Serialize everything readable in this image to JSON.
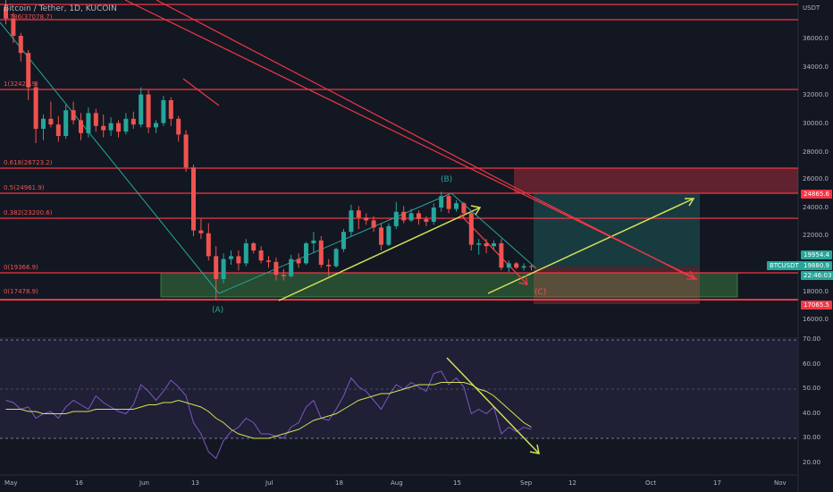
{
  "header": {
    "symbol_title": "Bitcoin / Tether, 1D, KUCOIN"
  },
  "currency": "USDT",
  "y_ticks": [
    "36000.0",
    "34000.0",
    "32000.0",
    "30000.0",
    "28000.0",
    "26000.0",
    "24000.0",
    "22000.0",
    "18000.0",
    "16000.0"
  ],
  "rsi_ticks": [
    "70.00",
    "60.00",
    "50.00",
    "40.00",
    "30.00",
    "20.00"
  ],
  "x_ticks": [
    "May",
    "16",
    "Jun",
    "13",
    "Jul",
    "18",
    "Aug",
    "15",
    "Sep",
    "12",
    "Oct",
    "17",
    "Nov"
  ],
  "fib_labels": {
    "top": "0.786(37078.7)",
    "l1": "1(32424.9)",
    "l0618": "0.618(26723.2)",
    "l05": "0.5(24961.9)",
    "l0382": "0.382(23200.6)",
    "l0": "0(19366.9)",
    "lbottom": "0(17478.9)"
  },
  "badges": {
    "b24865": "24865.6",
    "b19954": "19954.4",
    "btcusdt": "BTCUSDT",
    "price": "19880.9",
    "countdown": "22:46:03",
    "b17065": "17065.5"
  },
  "waves": {
    "A": "(A)",
    "B": "(B)",
    "C": "(C)"
  },
  "colors": {
    "bg": "#131722",
    "up": "#26a69a",
    "down": "#ef5350",
    "fib": "#f23645",
    "rsi": "#7e57c2",
    "ma": "#d4e157"
  },
  "chart_data": {
    "type": "candlestick",
    "candles": [
      [
        38000,
        38500,
        36800,
        37200
      ],
      [
        37200,
        37600,
        35500,
        36000
      ],
      [
        36000,
        36200,
        34200,
        34800
      ],
      [
        34800,
        35000,
        31500,
        32400
      ],
      [
        32400,
        32800,
        28500,
        29500
      ],
      [
        29500,
        30500,
        28700,
        30200
      ],
      [
        30200,
        31400,
        29600,
        29800
      ],
      [
        29800,
        30400,
        28600,
        29000
      ],
      [
        29000,
        31200,
        28800,
        30800
      ],
      [
        30800,
        31400,
        29800,
        30100
      ],
      [
        30100,
        30600,
        28700,
        29200
      ],
      [
        29200,
        31000,
        28900,
        30600
      ],
      [
        30600,
        30900,
        29300,
        29700
      ],
      [
        29700,
        30500,
        28900,
        29400
      ],
      [
        29400,
        30300,
        29000,
        29900
      ],
      [
        29900,
        30100,
        28900,
        29300
      ],
      [
        29300,
        30600,
        29100,
        30200
      ],
      [
        30200,
        30700,
        29500,
        29800
      ],
      [
        29800,
        32400,
        29600,
        31900
      ],
      [
        31900,
        32200,
        29200,
        29600
      ],
      [
        29600,
        30100,
        29200,
        29900
      ],
      [
        29900,
        31800,
        29700,
        31500
      ],
      [
        31500,
        31700,
        29700,
        30200
      ],
      [
        30200,
        30400,
        28600,
        29100
      ],
      [
        29100,
        29400,
        26500,
        26800
      ],
      [
        26800,
        27000,
        22000,
        22400
      ],
      [
        22400,
        23200,
        21800,
        22200
      ],
      [
        22200,
        22900,
        20300,
        20600
      ],
      [
        20600,
        21300,
        17600,
        19000
      ],
      [
        19000,
        20800,
        18700,
        20400
      ],
      [
        20400,
        21000,
        20000,
        20600
      ],
      [
        20600,
        21000,
        19600,
        20100
      ],
      [
        20100,
        21800,
        19900,
        21500
      ],
      [
        21500,
        21600,
        20800,
        21000
      ],
      [
        21000,
        21300,
        20100,
        20300
      ],
      [
        20300,
        20600,
        19800,
        20200
      ],
      [
        20200,
        20500,
        18900,
        19300
      ],
      [
        19300,
        19700,
        18900,
        19200
      ],
      [
        19200,
        20700,
        19100,
        20400
      ],
      [
        20400,
        20800,
        19800,
        20100
      ],
      [
        20100,
        21600,
        20000,
        21500
      ],
      [
        21500,
        22300,
        20800,
        21700
      ],
      [
        21700,
        22000,
        19800,
        20000
      ],
      [
        20000,
        20400,
        19200,
        19900
      ],
      [
        19900,
        21200,
        19800,
        21100
      ],
      [
        21100,
        22500,
        20900,
        22300
      ],
      [
        22300,
        24200,
        22000,
        23800
      ],
      [
        23800,
        24100,
        22500,
        23300
      ],
      [
        23300,
        23600,
        22800,
        23100
      ],
      [
        23100,
        23400,
        22300,
        22600
      ],
      [
        22600,
        22900,
        21000,
        21400
      ],
      [
        21400,
        22900,
        21300,
        22700
      ],
      [
        22700,
        24400,
        22500,
        23700
      ],
      [
        23700,
        24100,
        22900,
        23100
      ],
      [
        23100,
        23900,
        23000,
        23600
      ],
      [
        23600,
        23800,
        22800,
        23200
      ],
      [
        23200,
        23400,
        22700,
        23000
      ],
      [
        23000,
        24300,
        22800,
        24000
      ],
      [
        24000,
        25100,
        23700,
        24800
      ],
      [
        24800,
        24900,
        23600,
        23900
      ],
      [
        23900,
        24500,
        23700,
        24300
      ],
      [
        24300,
        24400,
        23200,
        23600
      ],
      [
        23600,
        23800,
        21000,
        21400
      ],
      [
        21400,
        21800,
        20700,
        21500
      ],
      [
        21500,
        21800,
        20800,
        21300
      ],
      [
        21300,
        21700,
        21000,
        21500
      ],
      [
        21500,
        21800,
        19600,
        19800
      ],
      [
        19800,
        20300,
        19500,
        20100
      ],
      [
        20100,
        20200,
        19700,
        19800
      ],
      [
        19800,
        20100,
        19600,
        19900
      ],
      [
        19900,
        20000,
        19600,
        19880
      ]
    ],
    "fib_levels": [
      {
        "ratio": "0.786",
        "price": 37078.7
      },
      {
        "ratio": "1",
        "price": 32424.9
      },
      {
        "ratio": "0.618",
        "price": 26723.2
      },
      {
        "ratio": "0.5",
        "price": 24961.9
      },
      {
        "ratio": "0.382",
        "price": 23200.6
      },
      {
        "ratio": "0",
        "price": 19366.9
      },
      {
        "ratio": "0",
        "price": 17478.9
      }
    ],
    "rsi": [
      48,
      47,
      44,
      45,
      40,
      42,
      43,
      40,
      45,
      48,
      46,
      44,
      50,
      47,
      45,
      43,
      42,
      46,
      55,
      52,
      48,
      52,
      57,
      54,
      50,
      38,
      33,
      25,
      22,
      30,
      34,
      36,
      40,
      38,
      33,
      33,
      32,
      31,
      36,
      38,
      45,
      48,
      40,
      39,
      44,
      50,
      58,
      54,
      52,
      48,
      44,
      50,
      55,
      53,
      56,
      54,
      52,
      60,
      61,
      55,
      58,
      54,
      42,
      44,
      42,
      45,
      33,
      36,
      34,
      36,
      35
    ],
    "ma": [
      44,
      44,
      44,
      43,
      43,
      42,
      42,
      42,
      42,
      43,
      43,
      43,
      44,
      44,
      44,
      44,
      44,
      44,
      45,
      46,
      46,
      47,
      47,
      48,
      47,
      46,
      45,
      43,
      40,
      38,
      35,
      33,
      32,
      31,
      31,
      31,
      32,
      33,
      34,
      35,
      37,
      39,
      40,
      41,
      42,
      44,
      46,
      48,
      49,
      50,
      51,
      51,
      52,
      53,
      54,
      55,
      55,
      55,
      56,
      56,
      56,
      56,
      55,
      53,
      52,
      50,
      47,
      44,
      41,
      38,
      36
    ],
    "y_range": [
      15000,
      38500
    ],
    "rsi_range": [
      15,
      75
    ]
  }
}
